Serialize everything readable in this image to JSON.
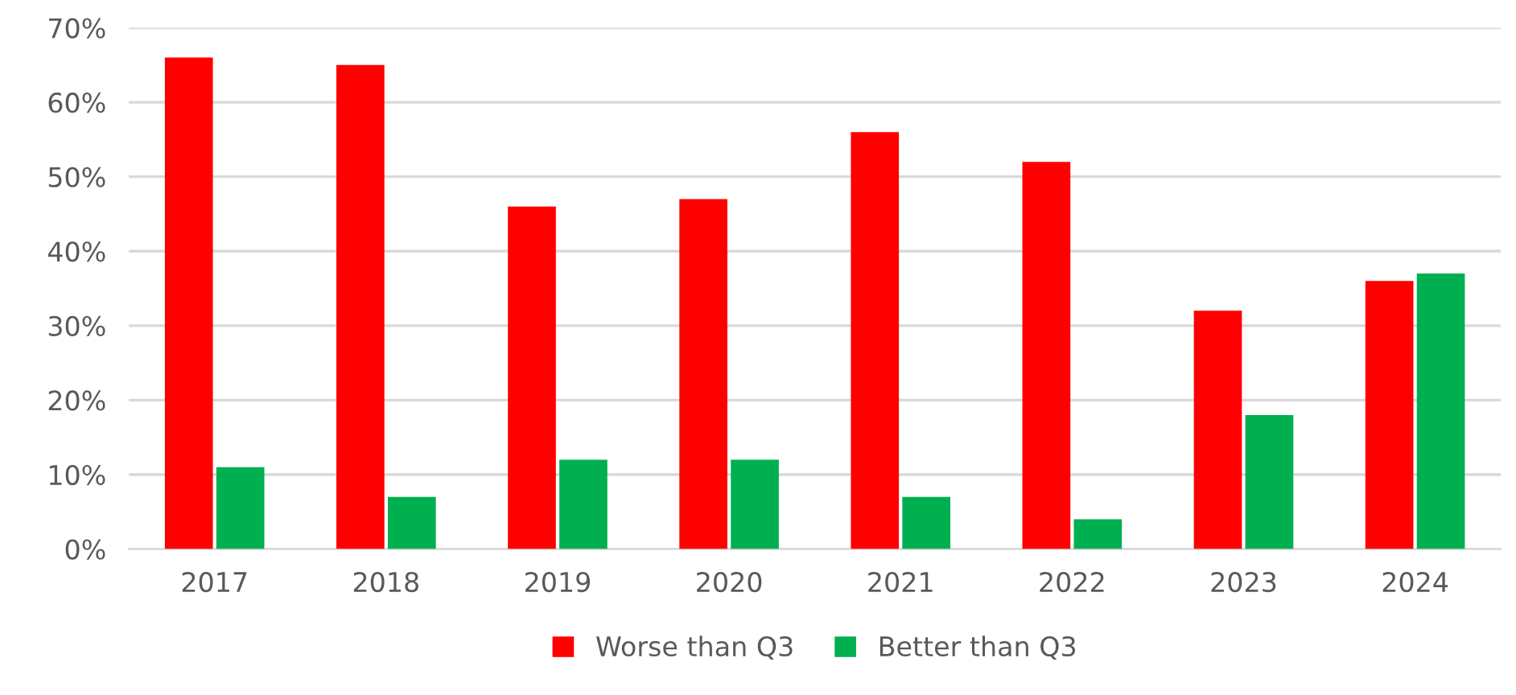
{
  "chart_data": {
    "type": "bar",
    "categories": [
      "2017",
      "2018",
      "2019",
      "2020",
      "2021",
      "2022",
      "2023",
      "2024"
    ],
    "series": [
      {
        "name": "Worse than Q3",
        "color": "#ff0000",
        "values": [
          66,
          65,
          46,
          47,
          56,
          52,
          32,
          36
        ]
      },
      {
        "name": "Better than Q3",
        "color": "#00b050",
        "values": [
          11,
          7,
          12,
          12,
          7,
          4,
          18,
          37
        ]
      }
    ],
    "ylim": [
      0,
      70
    ],
    "yticks": [
      {
        "value": 0,
        "label": "0%"
      },
      {
        "value": 10,
        "label": "10%"
      },
      {
        "value": 20,
        "label": "20%"
      },
      {
        "value": 30,
        "label": "30%"
      },
      {
        "value": 40,
        "label": "40%"
      },
      {
        "value": 50,
        "label": "50%"
      },
      {
        "value": 60,
        "label": "60%"
      },
      {
        "value": 70,
        "label": "70%"
      }
    ],
    "grid": "y",
    "legend": "bottom"
  }
}
